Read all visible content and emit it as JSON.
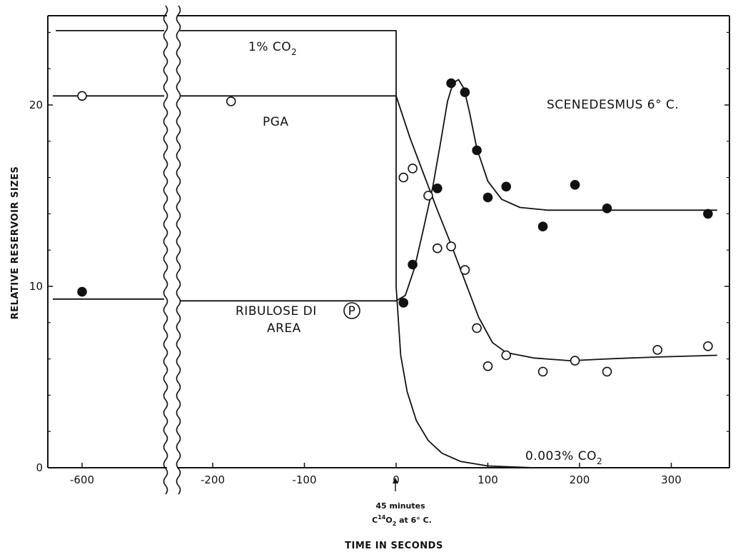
{
  "chart_data": {
    "type": "scatter",
    "xlabel": "TIME IN SECONDS",
    "ylabel": "RELATIVE RESERVOIR SIZES",
    "xlim": [
      -700,
      360
    ],
    "ylim": [
      0,
      25
    ],
    "axis_break": "between -600 and -250 (wavy break lines)",
    "x_ticks": [
      "-600",
      "-200",
      "-100",
      "0",
      "100",
      "200",
      "300"
    ],
    "y_ticks": [
      "0",
      "10",
      "20"
    ],
    "annotations": {
      "high_co2": "1% CO",
      "high_co2_sub": "2",
      "low_co2": "0.003% CO",
      "low_co2_sub": "2",
      "organism": "SCENEDESMUS 6° C.",
      "pga": "PGA",
      "rudp_line1": "RIBULOSE DI",
      "rudp_circled": "P",
      "rudp_line2": "AREA",
      "note_line1": "45 minutes",
      "note_line2_pre": "C",
      "note_line2_sup": "14",
      "note_line2_mid": "O",
      "note_line2_sub": "2",
      "note_line2_post": " at 6° C."
    },
    "series": [
      {
        "name": "PGA",
        "marker": "open circle",
        "points": [
          [
            -600,
            20.5
          ],
          [
            -180,
            20.2
          ],
          [
            8,
            16.0
          ],
          [
            18,
            16.5
          ],
          [
            35,
            15.0
          ],
          [
            45,
            12.1
          ],
          [
            60,
            12.2
          ],
          [
            75,
            10.9
          ],
          [
            88,
            7.7
          ],
          [
            100,
            5.6
          ],
          [
            120,
            6.2
          ],
          [
            160,
            5.3
          ],
          [
            195,
            5.9
          ],
          [
            230,
            5.3
          ],
          [
            285,
            6.5
          ],
          [
            340,
            6.7
          ]
        ],
        "curve": [
          [
            -650,
            20.5
          ],
          [
            0,
            20.5
          ],
          [
            15,
            18.2
          ],
          [
            30,
            16.2
          ],
          [
            45,
            14.2
          ],
          [
            60,
            12.3
          ],
          [
            75,
            10.3
          ],
          [
            90,
            8.3
          ],
          [
            105,
            6.9
          ],
          [
            120,
            6.35
          ],
          [
            150,
            6.05
          ],
          [
            190,
            5.9
          ],
          [
            230,
            6.0
          ],
          [
            280,
            6.1
          ],
          [
            350,
            6.2
          ]
        ]
      },
      {
        "name": "Ribulose diphosphate",
        "marker": "filled circle",
        "points": [
          [
            -600,
            9.7
          ],
          [
            8,
            9.1
          ],
          [
            18,
            11.2
          ],
          [
            45,
            15.4
          ],
          [
            60,
            21.2
          ],
          [
            75,
            20.7
          ],
          [
            88,
            17.5
          ],
          [
            100,
            14.9
          ],
          [
            120,
            15.5
          ],
          [
            160,
            13.3
          ],
          [
            195,
            15.6
          ],
          [
            230,
            14.3
          ],
          [
            340,
            14.0
          ]
        ],
        "curve": [
          [
            -650,
            9.3
          ],
          [
            0,
            9.2
          ],
          [
            10,
            9.5
          ],
          [
            20,
            11.0
          ],
          [
            30,
            13.2
          ],
          [
            40,
            15.5
          ],
          [
            48,
            17.8
          ],
          [
            56,
            20.2
          ],
          [
            62,
            21.2
          ],
          [
            68,
            21.4
          ],
          [
            74,
            20.9
          ],
          [
            80,
            19.6
          ],
          [
            88,
            17.6
          ],
          [
            100,
            15.8
          ],
          [
            115,
            14.8
          ],
          [
            135,
            14.35
          ],
          [
            165,
            14.2
          ],
          [
            220,
            14.2
          ],
          [
            350,
            14.2
          ]
        ]
      },
      {
        "name": "CO2 concentration",
        "marker": "none",
        "curve": [
          [
            -645,
            24.1
          ],
          [
            0,
            24.1
          ],
          [
            0,
            10.0
          ],
          [
            5,
            6.2
          ],
          [
            12,
            4.2
          ],
          [
            22,
            2.6
          ],
          [
            35,
            1.5
          ],
          [
            50,
            0.8
          ],
          [
            70,
            0.35
          ],
          [
            100,
            0.1
          ],
          [
            150,
            0.0
          ],
          [
            360,
            0.0
          ]
        ]
      }
    ]
  }
}
